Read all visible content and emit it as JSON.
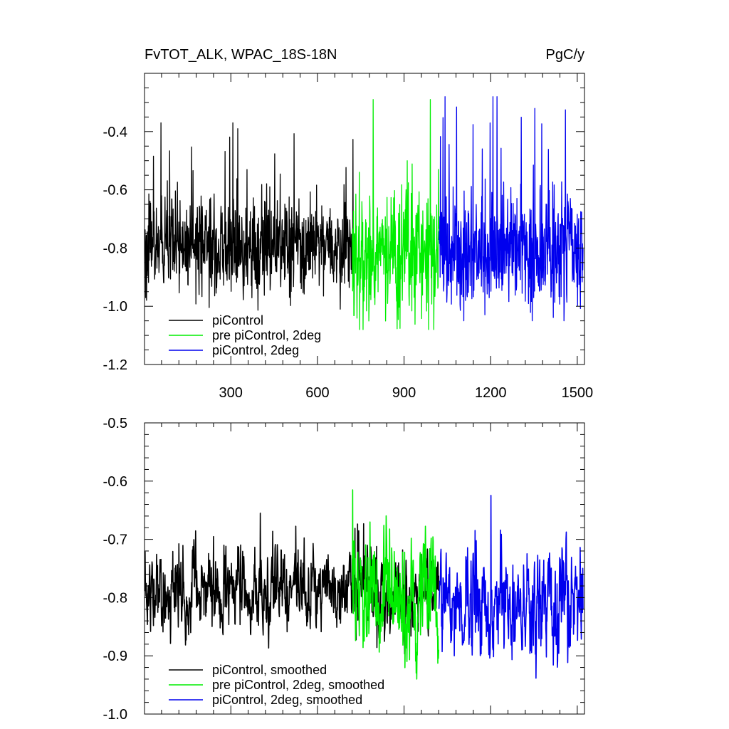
{
  "chart_data": [
    {
      "type": "line",
      "title": "FvTOT_ALK, WPAC_18S-18N",
      "units": "PgC/y",
      "xlim": [
        1,
        1525
      ],
      "ylim": [
        -1.2,
        -0.2
      ],
      "xticks": [
        300,
        600,
        900,
        1200,
        1500
      ],
      "xtick_labels": [
        "300",
        "600",
        "900",
        "1200",
        "1500"
      ],
      "yticks": [
        -1.2,
        -1.0,
        -0.8,
        -0.6,
        -0.4
      ],
      "ytick_labels": [
        "-1.2",
        "-1.0",
        "-0.8",
        "-0.6",
        "-0.4"
      ],
      "legend_position": "bottom-left",
      "series": [
        {
          "name": "piControl",
          "color": "#000000",
          "x_start": 1,
          "x_end": 730,
          "mean": -0.8,
          "spread": 0.08,
          "min": -1.03,
          "max": -0.37
        },
        {
          "name": "pre piControl, 2deg",
          "color": "#00ee00",
          "x_start": 721,
          "x_end": 1020,
          "mean": -0.82,
          "spread": 0.11,
          "min": -1.08,
          "max": -0.29
        },
        {
          "name": "piControl, 2deg",
          "color": "#0000ee",
          "x_start": 1021,
          "x_end": 1520,
          "mean": -0.81,
          "spread": 0.1,
          "min": -1.05,
          "max": -0.28
        }
      ]
    },
    {
      "type": "line",
      "title": "",
      "xlim": [
        1,
        1525
      ],
      "ylim": [
        -1.0,
        -0.5
      ],
      "xticks": [
        300,
        600,
        900,
        1200,
        1500
      ],
      "xtick_labels": [],
      "yticks": [
        -1.0,
        -0.9,
        -0.8,
        -0.7,
        -0.6,
        -0.5
      ],
      "ytick_labels": [
        "-1.0",
        "-0.9",
        "-0.8",
        "-0.7",
        "-0.6",
        "-0.5"
      ],
      "legend_position": "bottom-left",
      "series": [
        {
          "name": "piControl, smoothed",
          "color": "#000000",
          "x_start": 1,
          "x_end": 1020,
          "mean": -0.79,
          "spread": 0.04,
          "min": -0.92,
          "max": -0.655
        },
        {
          "name": "pre piControl, 2deg, smoothed",
          "color": "#00ee00",
          "x_start": 721,
          "x_end": 1020,
          "mean": -0.8,
          "spread": 0.06,
          "min": -0.94,
          "max": -0.615
        },
        {
          "name": "piControl, 2deg, smoothed",
          "color": "#0000ee",
          "x_start": 1021,
          "x_end": 1520,
          "mean": -0.8,
          "spread": 0.055,
          "min": -0.96,
          "max": -0.595
        }
      ]
    }
  ]
}
